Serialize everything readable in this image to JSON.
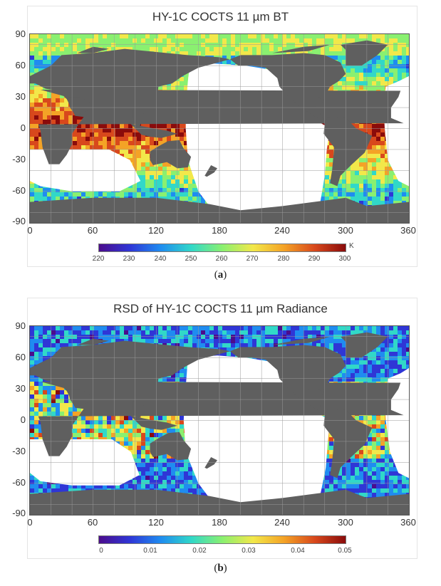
{
  "panels": [
    {
      "title": "HY-1C COCTS 11 µm BT",
      "label": "a",
      "colorbar": {
        "ticks": [
          "220",
          "230",
          "240",
          "250",
          "260",
          "270",
          "280",
          "290",
          "300"
        ],
        "unit": "K",
        "colormap": [
          "#4b0c8c",
          "#2f36d6",
          "#1f8cf0",
          "#31d8c8",
          "#8af070",
          "#f2e84a",
          "#f4a326",
          "#d8481c",
          "#8a0b0b"
        ]
      },
      "swath": "bt"
    },
    {
      "title": "RSD of HY-1C COCTS 11 µm Radiance",
      "label": "b",
      "colorbar": {
        "ticks": [
          "0",
          "0.01",
          "0.02",
          "0.03",
          "0.04",
          "0.05"
        ],
        "unit": "",
        "colormap": [
          "#4b0c8c",
          "#2f36d6",
          "#1f8cf0",
          "#31d8c8",
          "#8af070",
          "#f2e84a",
          "#f4a326",
          "#d8481c",
          "#8a0b0b"
        ]
      },
      "swath": "rsd"
    }
  ],
  "axes": {
    "x_ticks": [
      "0",
      "60",
      "120",
      "180",
      "240",
      "300",
      "360"
    ],
    "y_ticks": [
      "90",
      "60",
      "30",
      "0",
      "-30",
      "-60",
      "-90"
    ]
  },
  "colors": {
    "land": "#5f5f5f",
    "gap": "#ffffff",
    "grid": "#9a9a9a"
  }
}
